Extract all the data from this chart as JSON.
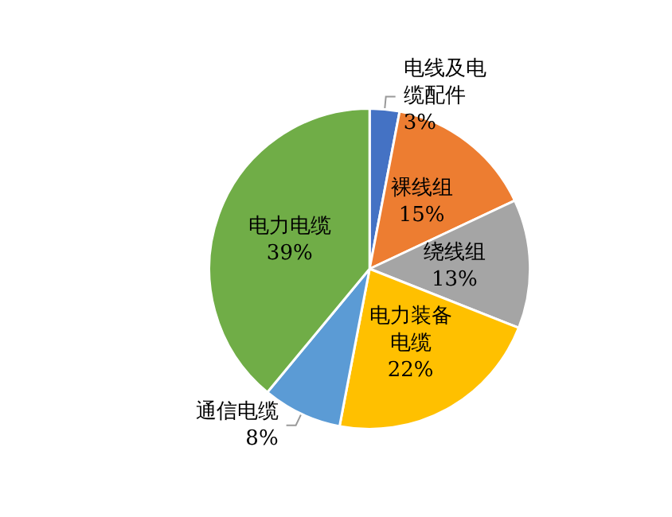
{
  "chart_data": {
    "type": "pie",
    "categories": [
      "电线及电缆配件",
      "裸线组",
      "绕线组",
      "电力装备电缆",
      "通信电缆",
      "电力电缆"
    ],
    "values": [
      3,
      15,
      13,
      22,
      8,
      39
    ],
    "value_labels": [
      "3%",
      "15%",
      "13%",
      "22%",
      "8%",
      "39%"
    ],
    "colors": [
      "#4472c4",
      "#ed7d31",
      "#a5a5a5",
      "#ffc000",
      "#5b9bd5",
      "#70ad47"
    ],
    "legend": false
  }
}
